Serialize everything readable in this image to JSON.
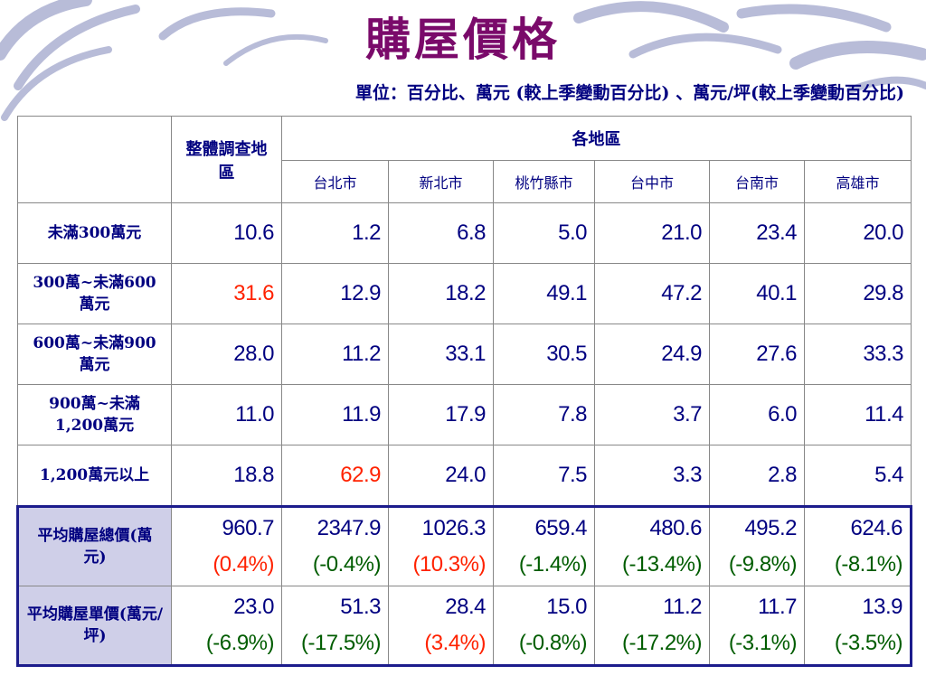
{
  "title": "購屋價格",
  "unit_note": "單位：百分比、萬元 (較上季變動百分比) 、萬元/坪(較上季變動百分比)",
  "table": {
    "overall_header": "整體調查地區",
    "region_header": "各地區",
    "regions": [
      "台北市",
      "新北市",
      "桃竹縣市",
      "台中市",
      "台南市",
      "高雄市"
    ],
    "rows": [
      {
        "label": "未滿300萬元",
        "values": [
          "10.6",
          "1.2",
          "6.8",
          "5.0",
          "21.0",
          "23.4",
          "20.0"
        ]
      },
      {
        "label": "300萬~未滿600萬元",
        "values": [
          "31.6",
          "12.9",
          "18.2",
          "49.1",
          "47.2",
          "40.1",
          "29.8"
        ]
      },
      {
        "label": "600萬~未滿900萬元",
        "values": [
          "28.0",
          "11.2",
          "33.1",
          "30.5",
          "24.9",
          "27.6",
          "33.3"
        ]
      },
      {
        "label": "900萬~未滿1,200萬元",
        "values": [
          "11.0",
          "11.9",
          "17.9",
          "7.8",
          "3.7",
          "6.0",
          "11.4"
        ]
      },
      {
        "label": "1,200萬元以上",
        "values": [
          "18.8",
          "62.9",
          "24.0",
          "7.5",
          "3.3",
          "2.8",
          "5.4"
        ]
      }
    ],
    "avg_total": {
      "label": "平均購屋總價(萬元)",
      "values": [
        "960.7",
        "2347.9",
        "1026.3",
        "659.4",
        "480.6",
        "495.2",
        "624.6"
      ],
      "changes": [
        "(0.4%)",
        "(-0.4%)",
        "(10.3%)",
        "(-1.4%)",
        "(-13.4%)",
        "(-9.8%)",
        "(-8.1%)"
      ]
    },
    "avg_unit": {
      "label": "平均購屋單價(萬元/坪)",
      "values": [
        "23.0",
        "51.3",
        "28.4",
        "15.0",
        "11.2",
        "11.7",
        "13.9"
      ],
      "changes": [
        "(-6.9%)",
        "(-17.5%)",
        "(3.4%)",
        "(-0.8%)",
        "(-17.2%)",
        "(-3.1%)",
        "(-3.5%)"
      ]
    }
  },
  "colors": {
    "title": "#7a0a6a",
    "text": "#000080",
    "highlight_red": "#ff2200",
    "change_green": "#005c00",
    "avg_label_bg": "#cfcfe8"
  }
}
